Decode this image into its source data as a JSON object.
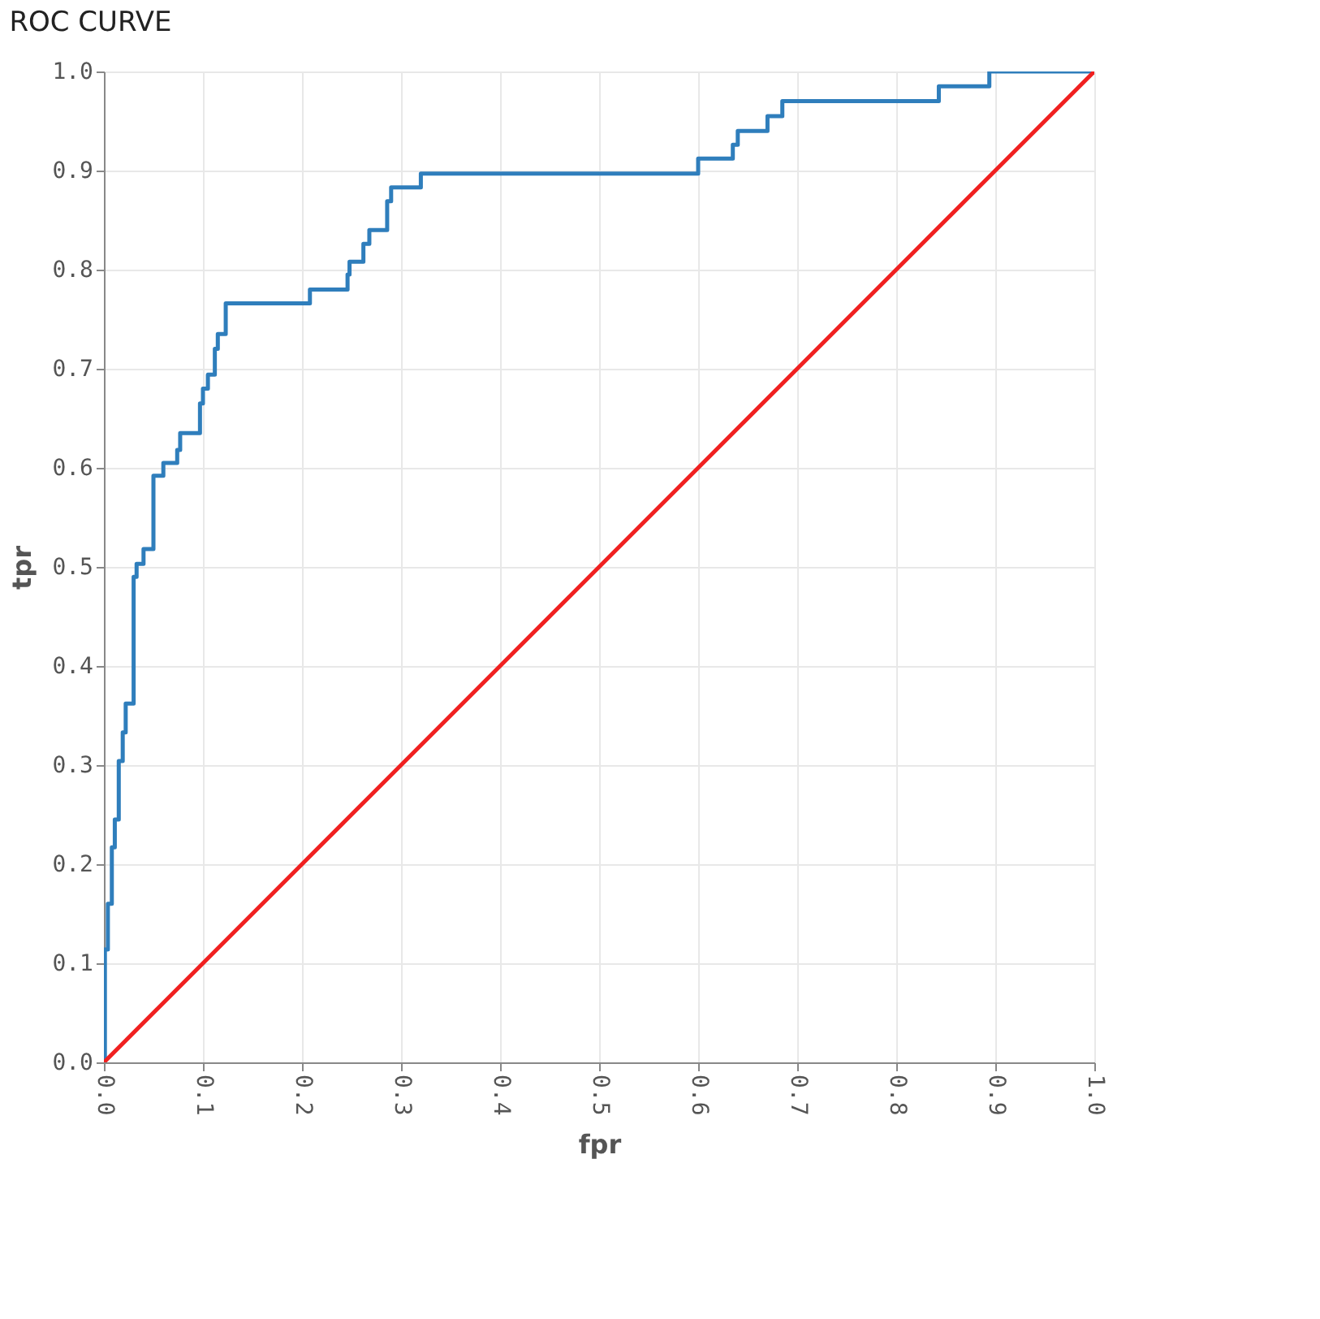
{
  "chart_data": {
    "type": "line",
    "title": "ROC CURVE",
    "xlabel": "fpr",
    "ylabel": "tpr",
    "xlim": [
      0,
      1
    ],
    "ylim": [
      0,
      1
    ],
    "xticks": [
      {
        "value": 0,
        "label": "0.0"
      },
      {
        "value": 0.1,
        "label": "0.1"
      },
      {
        "value": 0.2,
        "label": "0.2"
      },
      {
        "value": 0.3,
        "label": "0.3"
      },
      {
        "value": 0.4,
        "label": "0.4"
      },
      {
        "value": 0.5,
        "label": "0.5"
      },
      {
        "value": 0.6,
        "label": "0.6"
      },
      {
        "value": 0.7,
        "label": "0.7"
      },
      {
        "value": 0.8,
        "label": "0.8"
      },
      {
        "value": 0.9,
        "label": "0.9"
      },
      {
        "value": 1,
        "label": "1.0"
      }
    ],
    "yticks": [
      {
        "value": 0,
        "label": "0.0"
      },
      {
        "value": 0.1,
        "label": "0.1"
      },
      {
        "value": 0.2,
        "label": "0.2"
      },
      {
        "value": 0.3,
        "label": "0.3"
      },
      {
        "value": 0.4,
        "label": "0.4"
      },
      {
        "value": 0.5,
        "label": "0.5"
      },
      {
        "value": 0.6,
        "label": "0.6"
      },
      {
        "value": 0.7,
        "label": "0.7"
      },
      {
        "value": 0.8,
        "label": "0.8"
      },
      {
        "value": 0.9,
        "label": "0.9"
      },
      {
        "value": 1,
        "label": "1.0"
      }
    ],
    "grid": true,
    "series": [
      {
        "type": "step",
        "color": "#2f7ebc",
        "x": [
          0,
          0.001,
          0.004,
          0.008,
          0.011,
          0.015,
          0.019,
          0.022,
          0.03,
          0.033,
          0.04,
          0.05,
          0.06,
          0.074,
          0.077,
          0.097,
          0.1,
          0.105,
          0.112,
          0.115,
          0.123,
          0.208,
          0.246,
          0.248,
          0.262,
          0.268,
          0.286,
          0.29,
          0.32,
          0.6,
          0.635,
          0.64,
          0.67,
          0.685,
          0.843,
          0.894,
          1.0
        ],
        "values": [
          0,
          0.114,
          0.16,
          0.217,
          0.245,
          0.304,
          0.333,
          0.362,
          0.49,
          0.503,
          0.518,
          0.592,
          0.605,
          0.618,
          0.635,
          0.665,
          0.68,
          0.694,
          0.72,
          0.735,
          0.766,
          0.78,
          0.795,
          0.808,
          0.826,
          0.84,
          0.869,
          0.883,
          0.897,
          0.912,
          0.926,
          0.94,
          0.955,
          0.97,
          0.985,
          1.0,
          1.0
        ]
      },
      {
        "type": "line",
        "color": "#f02020",
        "x": [
          0,
          1
        ],
        "values": [
          0,
          1
        ]
      }
    ]
  }
}
